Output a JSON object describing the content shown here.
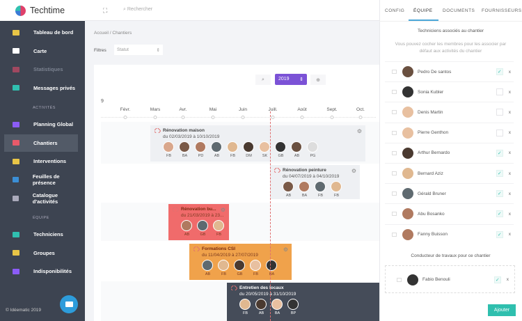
{
  "app": {
    "name": "Techtime",
    "copyright": "© Idéematic 2019"
  },
  "sidebar": {
    "items": [
      {
        "label": "Tableau de bord",
        "color": "#e8c547"
      },
      {
        "label": "Carte",
        "color": "#ffffff"
      },
      {
        "label": "Statistiques",
        "color": "#a04860",
        "disabled": true
      },
      {
        "label": "Messages privés",
        "color": "#30c0b0"
      }
    ],
    "section_activites": "ACTIVITÉS",
    "activites": [
      {
        "label": "Planning Global",
        "color": "#8b5cf6"
      },
      {
        "label": "Chantiers",
        "color": "#e85a6a",
        "active": true
      },
      {
        "label": "Interventions",
        "color": "#e8c547"
      },
      {
        "label": "Feuilles de présence",
        "color": "#3b8fd6"
      },
      {
        "label": "Catalogue d'activités",
        "color": "#aab"
      }
    ],
    "section_equipe": "ÉQUIPE",
    "equipe": [
      {
        "label": "Techniciens",
        "color": "#30c0b0"
      },
      {
        "label": "Groupes",
        "color": "#e8c547"
      },
      {
        "label": "Indisponibilités",
        "color": "#8b5cf6"
      }
    ]
  },
  "header": {
    "search_placeholder": "Rechercher",
    "fullscreen_icon": "expand-icon"
  },
  "breadcrumb": "Accueil  /  Chantiers",
  "filters": {
    "label": "Filtres",
    "status_placeholder": "Statut"
  },
  "timeline": {
    "year": "2019",
    "year_stub": "9",
    "months": [
      "Févr.",
      "Mars",
      "Avr.",
      "Mai",
      "Juin",
      "Juill.",
      "Août",
      "Sept.",
      "Oct."
    ],
    "projects": [
      {
        "title": "Rénovation maison",
        "dates": "du 02/03/2019 à 10/10/2019",
        "color": "#eef0f3",
        "members": [
          "FB",
          "BA",
          "PD",
          "AB",
          "FB",
          "DM",
          "SK",
          "GB",
          "AB",
          "PG"
        ]
      },
      {
        "title": "Rénovation peinture",
        "dates": "du 04/07/2019 à 04/10/2019",
        "color": "#eef0f3",
        "members": [
          "AB",
          "BA",
          "FB",
          "FB"
        ]
      },
      {
        "title": "Rénovation bu...",
        "dates": "du 21/03/2019 à 23...",
        "color": "#f06b6b",
        "members": [
          "AB",
          "GB",
          "FB"
        ]
      },
      {
        "title": "Formations CSI",
        "dates": "du 11/04/2019 à 27/07/2019",
        "color": "#f0a24b",
        "members": [
          "AB",
          "FB",
          "GB",
          "FB",
          "BA"
        ]
      },
      {
        "title": "Entretien des locaux",
        "dates": "du 20/05/2019 à 31/10/2019",
        "color": "#454c59",
        "members": [
          "FB",
          "AB",
          "BA",
          "BP"
        ]
      }
    ]
  },
  "panel": {
    "tabs": [
      "CONFIG",
      "ÉQUIPE",
      "DOCUMENTS",
      "FOURNISSEURS"
    ],
    "active_tab": "ÉQUIPE",
    "techs_title": "Techniciens associés au chantier",
    "hint": "Vous pouvez cocher les membres pour les associer par défaut aux activités du chantier",
    "techs": [
      {
        "name": "Pedro De santos",
        "checked": true
      },
      {
        "name": "Sonia Kubler",
        "checked": false
      },
      {
        "name": "Denis Martin",
        "checked": false
      },
      {
        "name": "Pierre Genthon",
        "checked": false
      },
      {
        "name": "Arthur Bernardo",
        "checked": true
      },
      {
        "name": "Bernard Aziz",
        "checked": true
      },
      {
        "name": "Gérald Bruner",
        "checked": true
      },
      {
        "name": "Abu Bosanko",
        "checked": true
      },
      {
        "name": "Fanny Buisson",
        "checked": true
      }
    ],
    "conducteur_title": "Conducteur de travaux pour ce chantier",
    "conducteur": {
      "name": "Fabio Benouli",
      "checked": true
    },
    "remove_label": "x",
    "check_mark": "✓",
    "add_button": "Ajouter"
  }
}
